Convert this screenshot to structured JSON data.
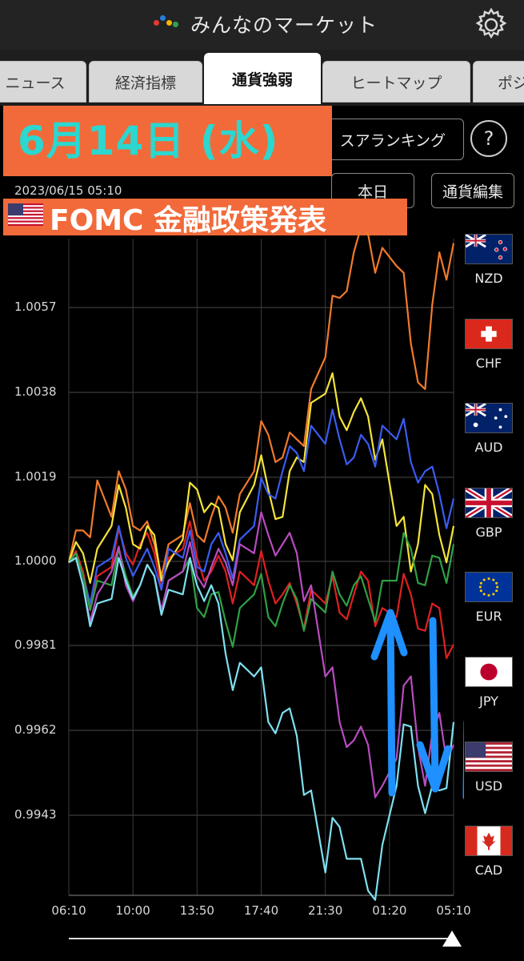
{
  "header": {
    "title": "みんなのマーケット",
    "settings_icon": "gear-icon"
  },
  "tabs": [
    {
      "label": "ニュース",
      "active": false
    },
    {
      "label": "経済指標",
      "active": false
    },
    {
      "label": "通貨強弱",
      "active": true
    },
    {
      "label": "ヒートマップ",
      "active": false
    },
    {
      "label": "ポジ",
      "active": false
    }
  ],
  "toolbar": {
    "ranking_label": "スアランキング",
    "help_label": "?",
    "period_label": "本日",
    "edit_label": "通貨編集"
  },
  "overlay": {
    "date": "6月14日 (水)",
    "event": "FOMC 金融政策発表"
  },
  "timestamp": "2023/06/15 05:10",
  "chart_data": {
    "type": "line",
    "y_ticks": [
      "1.0057",
      "1.0038",
      "1.0019",
      "1.0000",
      "0.9981",
      "0.9962",
      "0.9943"
    ],
    "x_ticks": [
      "06:10",
      "10:00",
      "13:50",
      "17:40",
      "21:30",
      "01:20",
      "05:10"
    ],
    "ylim": [
      0.9927,
      1.0071
    ],
    "series": [
      {
        "name": "NZD",
        "color": "#f07a2c",
        "values": [
          1.0,
          1.0007,
          1.0018,
          1.001,
          1.0016,
          1.0007,
          1.0004,
          1.0004,
          1.0006,
          1.0006,
          1.001,
          1.0012,
          1.0015,
          1.002,
          1.0028,
          1.0023,
          1.0027,
          1.0038,
          1.0045,
          1.0058,
          1.0068,
          1.0072,
          1.0069,
          1.0065,
          1.0048,
          1.0038,
          1.0068,
          1.007
        ]
      },
      {
        "name": "CHF",
        "color": "#e02020",
        "values": [
          1.0,
          0.9998,
          0.9997,
          0.9999,
          1.0002,
          1.0004,
          1.0002,
          1.0001,
          1.0003,
          1.0001,
          0.9998,
          0.9998,
          0.9998,
          0.9995,
          0.9996,
          0.9993,
          0.9991,
          0.9994,
          0.9991,
          0.9989,
          0.9993,
          0.9996,
          0.999,
          0.9988,
          0.9993,
          0.9985,
          0.999,
          0.9982
        ]
      },
      {
        "name": "AUD",
        "color": "#f4e33a",
        "values": [
          1.0,
          1.0002,
          1.0003,
          1.0008,
          1.0012,
          1.0003,
          1.0006,
          1.0,
          1.0005,
          1.0016,
          1.0013,
          1.0004,
          1.0011,
          1.0017,
          1.0016,
          1.001,
          1.0023,
          1.0035,
          1.0037,
          1.0032,
          1.0033,
          1.0032,
          1.0027,
          1.0008,
          0.9998,
          1.0017,
          1.0006,
          1.0008
        ]
      },
      {
        "name": "GBP",
        "color": "#3a5cf0",
        "values": [
          1.0,
          0.9997,
          0.9999,
          1.0001,
          1.0001,
          1.0,
          0.9999,
          1.0003,
          1.0001,
          0.9999,
          1.0004,
          1.0002,
          1.0005,
          1.0008,
          1.0015,
          1.002,
          1.0024,
          1.003,
          1.0026,
          1.0027,
          1.0023,
          1.0026,
          1.003,
          1.0027,
          1.0022,
          1.002,
          1.0015,
          1.0014
        ]
      },
      {
        "name": "EUR",
        "color": "#2fa045",
        "values": [
          1.0,
          0.9997,
          0.9996,
          0.9995,
          0.9997,
          0.9995,
          0.9997,
          0.9996,
          0.9998,
          0.999,
          0.9993,
          0.9987,
          0.999,
          0.9993,
          0.9988,
          0.9991,
          0.9992,
          0.9992,
          0.9989,
          0.9993,
          0.9995,
          0.9992,
          0.9996,
          0.9996,
          1.0003,
          0.9995,
          1.0001,
          1.0004
        ]
      },
      {
        "name": "JPY",
        "color": "#b84cc0",
        "values": [
          1.0,
          0.9995,
          0.9993,
          0.9998,
          0.9995,
          0.9995,
          0.9997,
          0.9996,
          0.9998,
          0.9997,
          0.9999,
          1.0,
          1.0004,
          1.0002,
          1.0006,
          1.0004,
          1.0002,
          0.9995,
          0.9975,
          0.9965,
          0.9961,
          0.996,
          0.9951,
          0.9957,
          0.9975,
          0.9951,
          0.9967,
          0.996
        ]
      },
      {
        "name": "CAD",
        "color": "#7ee0f0",
        "values": [
          1.0,
          0.9995,
          0.9991,
          0.9992,
          0.9996,
          0.9995,
          0.9997,
          0.9994,
          0.9993,
          0.9995,
          0.9995,
          0.998,
          0.9978,
          0.9975,
          0.9965,
          0.9967,
          0.9962,
          0.995,
          0.9932,
          0.9942,
          0.9935,
          0.9928,
          0.9938,
          0.9951,
          0.9964,
          0.9945,
          0.995,
          0.9965
        ]
      }
    ]
  },
  "currencies": [
    {
      "code": "NZD",
      "flag_icon": "nz-flag-icon"
    },
    {
      "code": "CHF",
      "flag_icon": "ch-flag-icon"
    },
    {
      "code": "AUD",
      "flag_icon": "au-flag-icon"
    },
    {
      "code": "GBP",
      "flag_icon": "gb-flag-icon"
    },
    {
      "code": "EUR",
      "flag_icon": "eu-flag-icon"
    },
    {
      "code": "JPY",
      "flag_icon": "jp-flag-icon"
    },
    {
      "code": "USD",
      "flag_icon": "us-flag-icon"
    },
    {
      "code": "CAD",
      "flag_icon": "ca-flag-icon"
    }
  ]
}
